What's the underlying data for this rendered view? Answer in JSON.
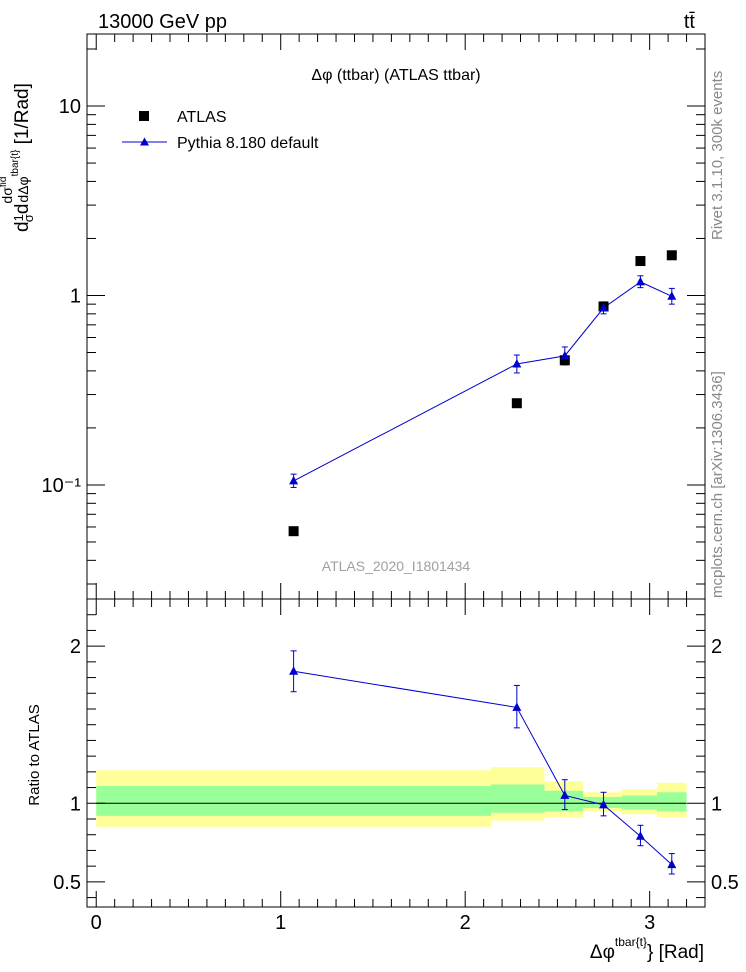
{
  "header": {
    "energy_label": "13000 GeV pp",
    "process_label": "tt̄"
  },
  "side_labels": {
    "rivet": "Rivet 3.1.10,  300k events",
    "mcplots": "mcplots.cern.ch [arXiv:1306.3436]"
  },
  "colors": {
    "data_marker": "#000000",
    "mc_line": "#0000cc",
    "band_inner": "#99ff99",
    "band_outer": "#ffff99"
  },
  "chart_data": [
    {
      "type": "scatter",
      "panel": "main",
      "title": "Δφ (ttbar) (ATLAS ttbar)",
      "ylabel": "1/σ dσ^fid/dΔφ^tbar{t} [1/Rad]",
      "yscale": "log",
      "ylim": [
        0.025,
        24
      ],
      "xlim": [
        -0.05,
        3.3
      ],
      "y_ticks": [
        {
          "value": 10,
          "label": "10"
        },
        {
          "value": 1,
          "label": "1"
        },
        {
          "value": 0.1,
          "label": "10⁻¹"
        }
      ],
      "watermark": "ATLAS_2020_I1801434",
      "legend": [
        "ATLAS",
        "Pythia 8.180 default"
      ],
      "series": [
        {
          "name": "ATLAS",
          "style": "square-markers",
          "x": [
            1.07,
            2.28,
            2.54,
            2.75,
            2.95,
            3.12
          ],
          "y": [
            0.057,
            0.27,
            0.455,
            0.875,
            1.52,
            1.63
          ]
        },
        {
          "name": "Pythia 8.180 default",
          "style": "line-triangles",
          "x": [
            1.07,
            2.28,
            2.54,
            2.75,
            2.95,
            3.12
          ],
          "y": [
            0.105,
            0.435,
            0.48,
            0.86,
            1.18,
            0.99
          ],
          "yerr_low": [
            0.008,
            0.045,
            0.05,
            0.06,
            0.08,
            0.09
          ],
          "yerr_high": [
            0.009,
            0.05,
            0.055,
            0.065,
            0.09,
            0.1
          ]
        }
      ]
    },
    {
      "type": "line",
      "panel": "ratio",
      "ylabel": "Ratio to ATLAS",
      "xlabel": "Δφ^tbar{t} [Rad]",
      "ylim": [
        0.34,
        2.3
      ],
      "xlim": [
        -0.05,
        3.3
      ],
      "y_ticks": [
        {
          "value": 2,
          "label": "2"
        },
        {
          "value": 1,
          "label": "1"
        },
        {
          "value": 0.5,
          "label": "0.5"
        }
      ],
      "x_ticks": [
        {
          "value": 0,
          "label": "0"
        },
        {
          "value": 1,
          "label": "1"
        },
        {
          "value": 2,
          "label": "2"
        },
        {
          "value": 3,
          "label": "3"
        }
      ],
      "bands": [
        {
          "x_low": 0.0,
          "x_high": 2.14,
          "outer": [
            0.85,
            1.21
          ],
          "inner": [
            0.92,
            1.11
          ]
        },
        {
          "x_low": 2.14,
          "x_high": 2.43,
          "outer": [
            0.89,
            1.23
          ],
          "inner": [
            0.94,
            1.12
          ]
        },
        {
          "x_low": 2.43,
          "x_high": 2.64,
          "outer": [
            0.91,
            1.14
          ],
          "inner": [
            0.95,
            1.08
          ]
        },
        {
          "x_low": 2.64,
          "x_high": 2.85,
          "outer": [
            0.95,
            1.07
          ],
          "inner": [
            0.97,
            1.04
          ]
        },
        {
          "x_low": 2.85,
          "x_high": 3.04,
          "outer": [
            0.93,
            1.09
          ],
          "inner": [
            0.96,
            1.05
          ]
        },
        {
          "x_low": 3.04,
          "x_high": 3.2,
          "outer": [
            0.91,
            1.13
          ],
          "inner": [
            0.95,
            1.07
          ]
        }
      ],
      "series": [
        {
          "name": "Pythia 8.180 default / ATLAS",
          "x": [
            1.07,
            2.28,
            2.54,
            2.75,
            2.95,
            3.12
          ],
          "y": [
            1.84,
            1.61,
            1.05,
            0.99,
            0.79,
            0.61
          ],
          "yerr_low": [
            0.13,
            0.13,
            0.09,
            0.07,
            0.06,
            0.06
          ],
          "yerr_high": [
            0.13,
            0.14,
            0.1,
            0.08,
            0.07,
            0.07
          ]
        }
      ]
    }
  ]
}
